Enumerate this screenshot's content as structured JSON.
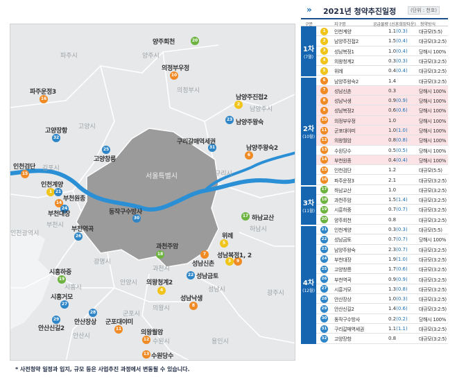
{
  "title": "2021년 청약추진일정",
  "unit": "(단위 : 천호)",
  "columns": [
    "구분",
    "지구명",
    "공급물량 (신혼희망타운)",
    "청약방식"
  ],
  "footnote": "* 사전청약 일정과 입지, 규모 등은 사업추진 과정에서 변동될 수 있습니다.",
  "colors": {
    "g1": "#f0c419",
    "g2": "#f08a24",
    "g3": "#6db33f",
    "g4": "#2e86c8",
    "header": "#1565b0",
    "seoul": "#9b9b9b",
    "river": "#2b8fd6"
  },
  "groups": [
    {
      "label": "1차",
      "sub": "(7월)",
      "rows": [
        {
          "no": "1",
          "name": "인천계양",
          "supply": "1.1",
          "newlywed": "(0.3)",
          "type": "대규모(5:5)",
          "hl": false
        },
        {
          "no": "2",
          "name": "남양주진접2",
          "supply": "1.5",
          "newlywed": "(0.4)",
          "type": "대규모(3:2:5)",
          "hl": false
        },
        {
          "no": "3",
          "name": "성남복정1",
          "supply": "1.0",
          "newlywed": "(0.4)",
          "type": "당해시 100%",
          "hl": false
        },
        {
          "no": "4",
          "name": "의왕청계2",
          "supply": "0.3",
          "newlywed": "(0.3)",
          "type": "대규모(3:2:5)",
          "hl": false
        },
        {
          "no": "5",
          "name": "위례",
          "supply": "0.4",
          "newlywed": "(0.4)",
          "type": "대규모(3:2:5)",
          "hl": false
        }
      ]
    },
    {
      "label": "2차",
      "sub": "(10월)",
      "rows": [
        {
          "no": "6",
          "name": "남양주왕숙2",
          "supply": "1.4",
          "newlywed": "",
          "type": "대규모(3:2:5)",
          "hl": false
        },
        {
          "no": "7",
          "name": "성남신촌",
          "supply": "0.3",
          "newlywed": "",
          "type": "당해시 100%",
          "hl": true
        },
        {
          "no": "8",
          "name": "성남낙생",
          "supply": "0.9",
          "newlywed": "(0.9)",
          "type": "당해시 100%",
          "hl": true
        },
        {
          "no": "9",
          "name": "성남복정2",
          "supply": "0.6",
          "newlywed": "(0.6)",
          "type": "당해시 100%",
          "hl": true
        },
        {
          "no": "10",
          "name": "의정부우정",
          "supply": "1.0",
          "newlywed": "",
          "type": "당해시 100%",
          "hl": true
        },
        {
          "no": "11",
          "name": "군포대야미",
          "supply": "1.0",
          "newlywed": "(1.0)",
          "type": "당해시 100%",
          "hl": true
        },
        {
          "no": "12",
          "name": "의왕월암",
          "supply": "0.8",
          "newlywed": "(0.8)",
          "type": "당해시 100%",
          "hl": true
        },
        {
          "no": "13",
          "name": "수원당수",
          "supply": "0.5",
          "newlywed": "(0.5)",
          "type": "당해시 100%",
          "hl": false
        },
        {
          "no": "14",
          "name": "부천원종",
          "supply": "0.4",
          "newlywed": "(0.4)",
          "type": "당해시 100%",
          "hl": true
        },
        {
          "no": "15",
          "name": "인천검단",
          "supply": "1.2",
          "newlywed": "",
          "type": "대규모(5:5)",
          "hl": false
        },
        {
          "no": "16",
          "name": "파주운정3",
          "supply": "2.1",
          "newlywed": "",
          "type": "대규모(3:2:5)",
          "hl": false
        }
      ]
    },
    {
      "label": "3차",
      "sub": "(11월)",
      "rows": [
        {
          "no": "17",
          "name": "하남교산",
          "supply": "1.0",
          "newlywed": "",
          "type": "대규모(3:2:5)",
          "hl": false
        },
        {
          "no": "18",
          "name": "과천주암",
          "supply": "1.5",
          "newlywed": "(1.4)",
          "type": "대규모(3:2:5)",
          "hl": false
        },
        {
          "no": "19",
          "name": "시흥하중",
          "supply": "0.7",
          "newlywed": "(0.7)",
          "type": "대규모(3:2:5)",
          "hl": false
        },
        {
          "no": "20",
          "name": "양주회천",
          "supply": "0.8",
          "newlywed": "",
          "type": "대규모(3:2:5)",
          "hl": false
        }
      ]
    },
    {
      "label": "4차",
      "sub": "(12월)",
      "rows": [
        {
          "no": "21",
          "name": "인천계양",
          "supply": "0.3",
          "newlywed": "(0.3)",
          "type": "대규모(5:5)",
          "hl": false
        },
        {
          "no": "22",
          "name": "성남금토",
          "supply": "0.7",
          "newlywed": "(0.7)",
          "type": "당해시 100%",
          "hl": false
        },
        {
          "no": "23",
          "name": "남양주왕숙",
          "supply": "2.3",
          "newlywed": "(0.7)",
          "type": "대규모(3:2:5)",
          "hl": false
        },
        {
          "no": "24",
          "name": "부천대장",
          "supply": "1.9",
          "newlywed": "(1.0)",
          "type": "대규모(3:2:5)",
          "hl": false
        },
        {
          "no": "25",
          "name": "고양창릉",
          "supply": "1.7",
          "newlywed": "(0.6)",
          "type": "대규모(3:2:5)",
          "hl": false
        },
        {
          "no": "26",
          "name": "부천역곡",
          "supply": "0.9",
          "newlywed": "(0.9)",
          "type": "대규모(3:2:5)",
          "hl": false
        },
        {
          "no": "27",
          "name": "시흥거모",
          "supply": "1.3",
          "newlywed": "(0.8)",
          "type": "대규모(3:2:5)",
          "hl": false
        },
        {
          "no": "28",
          "name": "안산장상",
          "supply": "1.0",
          "newlywed": "(0.3)",
          "type": "대규모(3:2:5)",
          "hl": false
        },
        {
          "no": "29",
          "name": "안산신길2",
          "supply": "1.4",
          "newlywed": "(0.6)",
          "type": "대규모(3:2:5)",
          "hl": false
        },
        {
          "no": "30",
          "name": "동작구수방사",
          "supply": "0.2",
          "newlywed": "(0.2)",
          "type": "당해시 100%",
          "hl": false
        },
        {
          "no": "31",
          "name": "구리갈매역세권",
          "supply": "1.1",
          "newlywed": "(1.1)",
          "type": "대규모(3:2:5)",
          "hl": false
        },
        {
          "no": "32",
          "name": "고양장항",
          "supply": "0.8",
          "newlywed": "",
          "type": "대규모(3:2:5)",
          "hl": false
        }
      ]
    }
  ],
  "map": {
    "cities": [
      "파주시",
      "양주시",
      "의정부시",
      "고양시",
      "남양주시",
      "서울특별시",
      "구리시",
      "김포시",
      "부천시",
      "인천광역시",
      "하남시",
      "시흥시",
      "광명시",
      "과천시",
      "성남시",
      "안양시",
      "의왕시",
      "군포시",
      "안산시",
      "수원시",
      "용인시",
      "광주시"
    ],
    "sites": [
      "양주회천",
      "의정부우정",
      "파주운정3",
      "남양주진접2",
      "남양주왕숙",
      "고양장항",
      "구리갈매역세권",
      "고양창릉",
      "남양주왕숙2",
      "인천검단",
      "인천계양",
      "부천원종",
      "부천대장",
      "동작구수방사",
      "하남교산",
      "부천역곡",
      "위례",
      "과천주암",
      "성남복정1, 2",
      "성남신촌",
      "시흥하중",
      "성남금토",
      "의왕청계2",
      "시흥거모",
      "성남낙생",
      "안산장상",
      "군포대야미",
      "안산신길2",
      "의왕월암",
      "수원당수"
    ]
  }
}
